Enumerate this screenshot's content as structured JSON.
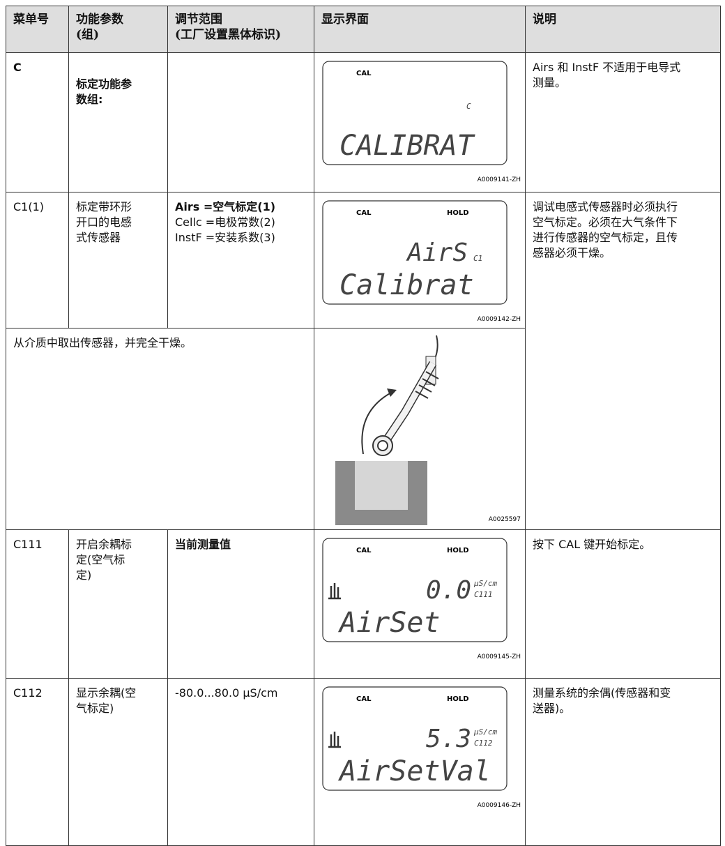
{
  "header": {
    "menu": [
      "菜单号"
    ],
    "function": [
      "功能参数",
      "(组)"
    ],
    "range": [
      "调节范围",
      "(工厂设置黑体标识)"
    ],
    "display": [
      "显示界面"
    ],
    "description": [
      "说明"
    ]
  },
  "rows": [
    {
      "menu": "C",
      "function": [
        "标定功能参",
        "数组:"
      ],
      "range": [],
      "display": {
        "top_left": "CAL",
        "code": "C",
        "text": "CALIBRAT",
        "figure": "A0009141-ZH"
      },
      "description": [
        "Airs 和 InstF 不适用于电导式",
        "测量。"
      ]
    },
    {
      "menu": "C1(1)",
      "function": [
        "标定带环形",
        "开口的电感",
        "式传感器"
      ],
      "range": [
        {
          "text": "Airs =空气标定(1)",
          "bold": true
        },
        {
          "text": "Cellc =电极常数(2)",
          "bold": false
        },
        {
          "text": "InstF =安装系数(3)",
          "bold": false
        }
      ],
      "display": {
        "top_left": "CAL",
        "top_right": "HOLD",
        "value": "AirS",
        "code": "C1",
        "text": "Calibrat",
        "figure": "A0009142-ZH"
      },
      "description": [
        "调试电感式传感器时必须执行",
        "空气标定。必须在大气条件下",
        "进行传感器的空气标定，且传",
        "感器必须干燥。"
      ]
    },
    {
      "note": "从介质中取出传感器，并完全干燥。",
      "figure": "A0025597"
    },
    {
      "menu": "C111",
      "function": [
        "开启余耦标",
        "定(空气标",
        "定)"
      ],
      "range": [
        {
          "text": "当前测量值",
          "bold": true
        }
      ],
      "display": {
        "top_left": "CAL",
        "top_right": "HOLD",
        "value": "0.0",
        "unit": "µS/cm",
        "code": "C111",
        "text": "AirSet",
        "figure": "A0009145-ZH"
      },
      "description": [
        "按下 CAL 键开始标定。"
      ]
    },
    {
      "menu": "C112",
      "function": [
        "显示余耦(空",
        "气标定)"
      ],
      "range": [
        {
          "text": "-80.0...80.0 µS/cm",
          "bold": false
        }
      ],
      "display": {
        "top_left": "CAL",
        "top_right": "HOLD",
        "value": "5.3",
        "unit": "µS/cm",
        "code": "C112",
        "text": "AirSetVal",
        "figure": "A0009146-ZH"
      },
      "description": [
        "测量系统的余偶(传感器和变",
        "送器)。"
      ]
    }
  ]
}
